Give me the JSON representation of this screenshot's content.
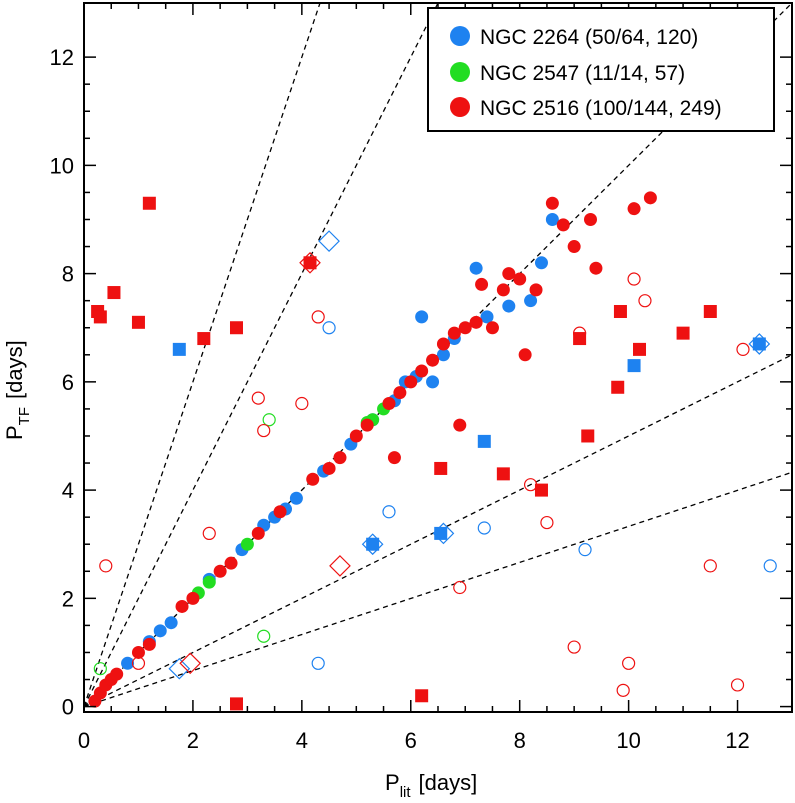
{
  "chart_data": {
    "type": "scatter",
    "xlabel": "P",
    "xlabel_sub": "lit",
    "xlabel_unit": "[days]",
    "ylabel": "P",
    "ylabel_sub": "TF",
    "ylabel_unit": "[days]",
    "xlim": [
      0,
      13
    ],
    "ylim": [
      -0.1,
      13
    ],
    "xticks": [
      0,
      2,
      4,
      6,
      8,
      10,
      12
    ],
    "yticks": [
      0,
      2,
      4,
      6,
      8,
      10,
      12
    ],
    "reference_line_slopes": [
      3,
      2,
      1,
      0.5,
      0.333
    ],
    "colors": {
      "NGC 2264": "#1e82f0",
      "NGC 2547": "#22dd22",
      "NGC 2516": "#ee1111",
      "axis": "#000000"
    },
    "legend": [
      {
        "label": "NGC 2264 (50/64, 120)",
        "color": "#1e82f0"
      },
      {
        "label": "NGC 2547 (11/14, 57)",
        "color": "#22dd22"
      },
      {
        "label": "NGC 2516 (100/144, 249)",
        "color": "#ee1111"
      }
    ],
    "series": [
      {
        "name": "NGC 2264 filled circles",
        "cluster": "NGC 2264",
        "marker": "filled-circle",
        "points": [
          [
            0.8,
            0.8
          ],
          [
            1.2,
            1.2
          ],
          [
            1.4,
            1.4
          ],
          [
            1.6,
            1.55
          ],
          [
            2.3,
            2.35
          ],
          [
            2.9,
            2.9
          ],
          [
            3.3,
            3.35
          ],
          [
            3.5,
            3.5
          ],
          [
            3.7,
            3.65
          ],
          [
            3.9,
            3.85
          ],
          [
            4.4,
            4.35
          ],
          [
            4.9,
            4.85
          ],
          [
            5.3,
            5.3
          ],
          [
            5.7,
            5.65
          ],
          [
            5.9,
            6.0
          ],
          [
            6.1,
            6.1
          ],
          [
            6.2,
            7.2
          ],
          [
            6.4,
            6.0
          ],
          [
            6.6,
            6.5
          ],
          [
            6.8,
            6.8
          ],
          [
            7.2,
            8.1
          ],
          [
            7.4,
            7.2
          ],
          [
            7.8,
            7.4
          ],
          [
            8.2,
            7.5
          ],
          [
            8.6,
            9.0
          ],
          [
            8.4,
            8.2
          ]
        ]
      },
      {
        "name": "NGC 2547 filled circles",
        "cluster": "NGC 2547",
        "marker": "filled-circle",
        "points": [
          [
            2.1,
            2.1
          ],
          [
            2.3,
            2.3
          ],
          [
            3.0,
            3.0
          ],
          [
            5.2,
            5.25
          ],
          [
            5.3,
            5.3
          ],
          [
            5.5,
            5.5
          ]
        ]
      },
      {
        "name": "NGC 2516 filled circles",
        "cluster": "NGC 2516",
        "marker": "filled-circle",
        "points": [
          [
            0.2,
            0.1
          ],
          [
            0.3,
            0.25
          ],
          [
            0.4,
            0.4
          ],
          [
            0.5,
            0.5
          ],
          [
            0.6,
            0.6
          ],
          [
            1.0,
            1.0
          ],
          [
            1.2,
            1.15
          ],
          [
            1.8,
            1.85
          ],
          [
            2.0,
            2.0
          ],
          [
            2.5,
            2.5
          ],
          [
            2.7,
            2.65
          ],
          [
            3.2,
            3.2
          ],
          [
            3.6,
            3.6
          ],
          [
            4.2,
            4.2
          ],
          [
            4.5,
            4.4
          ],
          [
            4.7,
            4.6
          ],
          [
            5.0,
            5.0
          ],
          [
            5.2,
            5.2
          ],
          [
            5.6,
            5.6
          ],
          [
            5.8,
            5.8
          ],
          [
            6.0,
            6.0
          ],
          [
            6.2,
            6.2
          ],
          [
            6.4,
            6.4
          ],
          [
            6.6,
            6.7
          ],
          [
            6.8,
            6.9
          ],
          [
            7.0,
            7.0
          ],
          [
            7.2,
            7.1
          ],
          [
            7.3,
            7.8
          ],
          [
            7.5,
            7.0
          ],
          [
            7.7,
            7.7
          ],
          [
            7.8,
            8.0
          ],
          [
            8.0,
            7.9
          ],
          [
            8.1,
            6.5
          ],
          [
            8.3,
            7.7
          ],
          [
            8.6,
            9.3
          ],
          [
            8.8,
            8.9
          ],
          [
            9.0,
            8.5
          ],
          [
            9.3,
            9.0
          ],
          [
            9.4,
            8.1
          ],
          [
            10.1,
            9.2
          ],
          [
            10.4,
            9.4
          ],
          [
            5.7,
            4.6
          ],
          [
            6.9,
            5.2
          ]
        ]
      },
      {
        "name": "NGC 2264 filled squares",
        "cluster": "NGC 2264",
        "marker": "filled-square",
        "points": [
          [
            1.75,
            6.6
          ],
          [
            5.3,
            3.0
          ],
          [
            6.55,
            3.2
          ],
          [
            7.35,
            4.9
          ],
          [
            10.1,
            6.3
          ],
          [
            12.4,
            6.7
          ]
        ]
      },
      {
        "name": "NGC 2516 filled squares",
        "cluster": "NGC 2516",
        "marker": "filled-square",
        "points": [
          [
            0.25,
            7.3
          ],
          [
            0.3,
            7.2
          ],
          [
            0.55,
            7.65
          ],
          [
            1.0,
            7.1
          ],
          [
            1.2,
            9.3
          ],
          [
            2.2,
            6.8
          ],
          [
            2.8,
            7.0
          ],
          [
            4.15,
            8.2
          ],
          [
            6.55,
            4.4
          ],
          [
            7.7,
            4.3
          ],
          [
            8.4,
            4.0
          ],
          [
            9.25,
            5.0
          ],
          [
            9.1,
            6.8
          ],
          [
            9.8,
            5.9
          ],
          [
            9.85,
            7.3
          ],
          [
            10.2,
            6.6
          ],
          [
            11.0,
            6.9
          ],
          [
            11.5,
            7.3
          ],
          [
            2.8,
            0.05
          ],
          [
            6.2,
            0.2
          ]
        ]
      },
      {
        "name": "NGC 2264 open circles",
        "cluster": "NGC 2264",
        "marker": "open-circle",
        "points": [
          [
            4.5,
            7.0
          ],
          [
            5.6,
            3.6
          ],
          [
            7.35,
            3.3
          ],
          [
            4.3,
            0.8
          ],
          [
            9.2,
            2.9
          ],
          [
            12.6,
            2.6
          ]
        ]
      },
      {
        "name": "NGC 2547 open circles",
        "cluster": "NGC 2547",
        "marker": "open-circle",
        "points": [
          [
            0.3,
            0.7
          ],
          [
            3.4,
            5.3
          ],
          [
            3.3,
            1.3
          ]
        ]
      },
      {
        "name": "NGC 2516 open circles",
        "cluster": "NGC 2516",
        "marker": "open-circle",
        "points": [
          [
            0.4,
            2.6
          ],
          [
            2.3,
            3.2
          ],
          [
            3.2,
            5.7
          ],
          [
            3.3,
            5.1
          ],
          [
            4.0,
            5.6
          ],
          [
            4.3,
            7.2
          ],
          [
            6.9,
            2.2
          ],
          [
            8.2,
            4.1
          ],
          [
            8.5,
            3.4
          ],
          [
            9.1,
            6.9
          ],
          [
            9.0,
            1.1
          ],
          [
            9.9,
            0.3
          ],
          [
            10.0,
            0.8
          ],
          [
            10.1,
            7.9
          ],
          [
            10.3,
            7.5
          ],
          [
            12.0,
            0.4
          ],
          [
            11.5,
            2.6
          ],
          [
            12.1,
            6.6
          ],
          [
            1.0,
            0.8
          ]
        ]
      },
      {
        "name": "NGC 2264 open diamonds",
        "cluster": "NGC 2264",
        "marker": "open-diamond",
        "points": [
          [
            4.5,
            8.6
          ],
          [
            5.3,
            3.0
          ],
          [
            6.6,
            3.2
          ],
          [
            12.4,
            6.7
          ],
          [
            1.75,
            0.7
          ]
        ]
      },
      {
        "name": "NGC 2516 open diamonds",
        "cluster": "NGC 2516",
        "marker": "open-diamond",
        "points": [
          [
            4.15,
            8.2
          ],
          [
            4.7,
            2.6
          ],
          [
            1.95,
            0.8
          ]
        ]
      }
    ]
  }
}
